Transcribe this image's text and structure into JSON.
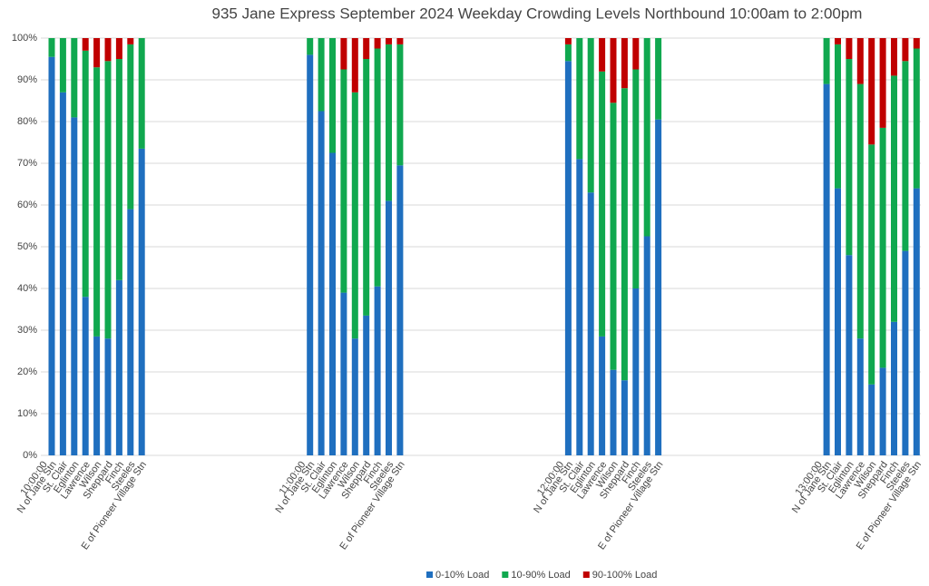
{
  "chart_data": {
    "type": "stacked_bar",
    "title": "935 Jane Express September 2024  Weekday Crowding Levels Northbound 10:00am to 2:00pm",
    "group_labels": [
      "10:00:00",
      "11:00:00",
      "12:00:00",
      "13:00:00"
    ],
    "categories": [
      "N of Jane Stn",
      "St. Clair",
      "Eglinton",
      "Lawrence",
      "Wilson",
      "Sheppard",
      "Finch",
      "Steeles",
      "E of Pioneer Village Stn",
      "N of Jane Stn",
      "St. Clair",
      "Eglinton",
      "Lawrence",
      "Wilson",
      "Sheppard",
      "Finch",
      "Steeles",
      "E of Pioneer Village Stn",
      "N of Jane Stn",
      "St. Clair",
      "Eglinton",
      "Lawrence",
      "Wilson",
      "Sheppard",
      "Finch",
      "Steeles",
      "E of Pioneer Village Stn",
      "N of Jane Stn",
      "St. Clair",
      "Eglinton",
      "Lawrence",
      "Wilson",
      "Sheppard",
      "Finch",
      "Steeles",
      "E of Pioneer Village Stn"
    ],
    "series": [
      {
        "name": "0-10% Load",
        "color": "#1f6fbf",
        "values": [
          95.5,
          87,
          81,
          38,
          28.5,
          28,
          42,
          59,
          73.5,
          96,
          82.5,
          72.5,
          39,
          28,
          33.5,
          40.5,
          61,
          69.5,
          94.5,
          71,
          63,
          28.5,
          20.5,
          18,
          40,
          52.5,
          80.5,
          89,
          64,
          48,
          28,
          17,
          21,
          32,
          49,
          64
        ]
      },
      {
        "name": "10-90% Load",
        "color": "#10a84f",
        "values": [
          4.5,
          13,
          19,
          59,
          64.5,
          66.5,
          53,
          39.5,
          26.5,
          4,
          17.5,
          27.5,
          53.5,
          59,
          61.5,
          57,
          37.5,
          29,
          4,
          29,
          37,
          63.5,
          64,
          70,
          52.5,
          47.5,
          19.5,
          11,
          34.5,
          47,
          61,
          57.5,
          57.5,
          59,
          45.5,
          33.5
        ]
      },
      {
        "name": "90-100% Load",
        "color": "#c00000",
        "values": [
          0,
          0,
          0,
          3,
          7,
          5.5,
          5,
          1.5,
          0,
          0,
          0,
          0,
          7.5,
          13,
          5,
          2.5,
          1.5,
          1.5,
          1.5,
          0,
          0,
          8,
          15.5,
          12,
          7.5,
          0,
          0,
          0,
          1.5,
          5,
          11,
          25.5,
          21.5,
          9,
          5.5,
          2.5
        ]
      }
    ],
    "ylim": [
      0,
      100
    ],
    "yticks": [
      {
        "value": 0,
        "label": "0%"
      },
      {
        "value": 10,
        "label": "10%"
      },
      {
        "value": 20,
        "label": "20%"
      },
      {
        "value": 30,
        "label": "30%"
      },
      {
        "value": 40,
        "label": "40%"
      },
      {
        "value": 50,
        "label": "50%"
      },
      {
        "value": 60,
        "label": "60%"
      },
      {
        "value": 70,
        "label": "70%"
      },
      {
        "value": 80,
        "label": "80%"
      },
      {
        "value": 90,
        "label": "90%"
      },
      {
        "value": 100,
        "label": "100%"
      }
    ],
    "grid": true,
    "legend": "bottom"
  }
}
